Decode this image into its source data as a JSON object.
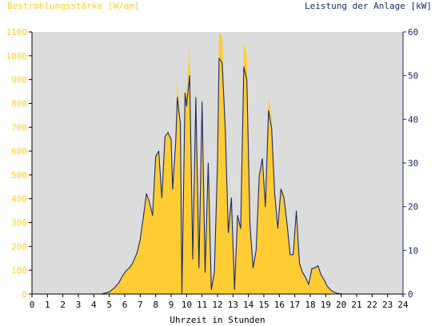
{
  "chart_data": {
    "type": "area",
    "left_axis_title": "Bestrahlungsstärke [W/qm]",
    "right_axis_title": "Leistung der Anlage [kW]",
    "xlabel": "Uhrzeit in Stunden",
    "x_range": [
      0,
      24
    ],
    "x_ticks": [
      "0",
      "1",
      "2",
      "3",
      "4",
      "5",
      "6",
      "7",
      "8",
      "9",
      "10",
      "11",
      "12",
      "13",
      "14",
      "15",
      "16",
      "17",
      "18",
      "19",
      "20",
      "21",
      "22",
      "23",
      "24"
    ],
    "y_left_range": [
      0,
      1100
    ],
    "y_left_ticks": [
      "0",
      "100",
      "200",
      "300",
      "400",
      "500",
      "600",
      "700",
      "800",
      "900",
      "1000",
      "1100"
    ],
    "y_right_range": [
      0,
      60
    ],
    "y_right_ticks": [
      "0",
      "10",
      "20",
      "30",
      "40",
      "50",
      "60"
    ],
    "grid": false,
    "colors": {
      "plot_bg": "#dcdcdc",
      "irradiance_fill": "#ffcc33",
      "power_line": "#1a2a6c",
      "left_axis_text": "#ffcc33",
      "right_axis_text": "#1a2a6c",
      "x_axis_text": "#000000"
    },
    "series": [
      {
        "axis": "left",
        "style": "filled-area",
        "x": [
          4.5,
          5.0,
          5.3,
          5.6,
          5.9,
          6.1,
          6.3,
          6.5,
          6.8,
          7.0,
          7.2,
          7.4,
          7.6,
          7.8,
          8.0,
          8.2,
          8.4,
          8.6,
          8.8,
          9.0,
          9.1,
          9.3,
          9.4,
          9.6,
          9.7,
          9.9,
          10.0,
          10.2,
          10.4,
          10.6,
          10.8,
          11.0,
          11.2,
          11.4,
          11.6,
          11.8,
          12.0,
          12.1,
          12.3,
          12.5,
          12.7,
          12.9,
          13.1,
          13.3,
          13.5,
          13.7,
          13.9,
          14.1,
          14.3,
          14.5,
          14.7,
          14.9,
          15.1,
          15.3,
          15.5,
          15.7,
          15.9,
          16.1,
          16.3,
          16.5,
          16.7,
          16.9,
          17.1,
          17.3,
          17.5,
          17.7,
          17.9,
          18.1,
          18.3,
          18.5,
          18.7,
          18.9,
          19.1,
          19.3,
          19.5,
          19.7,
          19.9,
          20.1,
          20.3
        ],
        "values": [
          0,
          10,
          25,
          45,
          80,
          100,
          110,
          130,
          170,
          230,
          320,
          420,
          380,
          330,
          580,
          600,
          400,
          660,
          680,
          650,
          440,
          640,
          900,
          720,
          150,
          870,
          840,
          1050,
          200,
          880,
          230,
          820,
          120,
          560,
          40,
          100,
          560,
          1100,
          1080,
          700,
          280,
          400,
          40,
          340,
          280,
          1060,
          1000,
          300,
          120,
          200,
          500,
          560,
          380,
          830,
          740,
          430,
          280,
          450,
          420,
          300,
          170,
          160,
          300,
          140,
          100,
          70,
          40,
          110,
          110,
          120,
          80,
          60,
          35,
          20,
          10,
          5,
          2,
          0,
          0
        ]
      },
      {
        "axis": "right",
        "style": "line",
        "x": [
          4.5,
          5.0,
          5.3,
          5.6,
          5.9,
          6.1,
          6.3,
          6.5,
          6.8,
          7.0,
          7.2,
          7.4,
          7.6,
          7.8,
          8.0,
          8.2,
          8.4,
          8.6,
          8.8,
          9.0,
          9.1,
          9.3,
          9.4,
          9.6,
          9.7,
          9.9,
          10.0,
          10.2,
          10.4,
          10.6,
          10.8,
          11.0,
          11.2,
          11.4,
          11.6,
          11.8,
          12.0,
          12.1,
          12.3,
          12.5,
          12.7,
          12.9,
          13.1,
          13.3,
          13.5,
          13.7,
          13.9,
          14.1,
          14.3,
          14.5,
          14.7,
          14.9,
          15.1,
          15.3,
          15.5,
          15.7,
          15.9,
          16.1,
          16.3,
          16.5,
          16.7,
          16.9,
          17.1,
          17.3,
          17.5,
          17.7,
          17.9,
          18.1,
          18.3,
          18.5,
          18.7,
          18.9,
          19.1,
          19.3,
          19.5,
          19.7,
          19.9,
          20.1,
          20.3
        ],
        "values": [
          0,
          0.5,
          1.3,
          2.5,
          4.4,
          5.4,
          6.0,
          7.0,
          9.5,
          12.5,
          17.5,
          23.0,
          21.0,
          18.0,
          31.5,
          32.7,
          22.0,
          36.0,
          37.0,
          35.4,
          24.0,
          35.0,
          45.0,
          39.0,
          0,
          46.0,
          43.0,
          50.0,
          8.0,
          45.0,
          6.0,
          44.0,
          5.0,
          30.0,
          1.0,
          5.0,
          30.0,
          54.0,
          53.0,
          38.0,
          14.0,
          22.0,
          1.0,
          18.0,
          15.0,
          52.0,
          49.0,
          16.0,
          6.0,
          10.0,
          27.0,
          31.0,
          20.0,
          42.0,
          38.0,
          23.0,
          15.0,
          24.0,
          22.0,
          16.0,
          9.0,
          9.0,
          19.0,
          7.0,
          5.0,
          3.8,
          2.2,
          5.8,
          6.0,
          6.5,
          4.4,
          3.2,
          1.8,
          1.0,
          0.5,
          0.2,
          0.1,
          0,
          0
        ]
      }
    ]
  }
}
